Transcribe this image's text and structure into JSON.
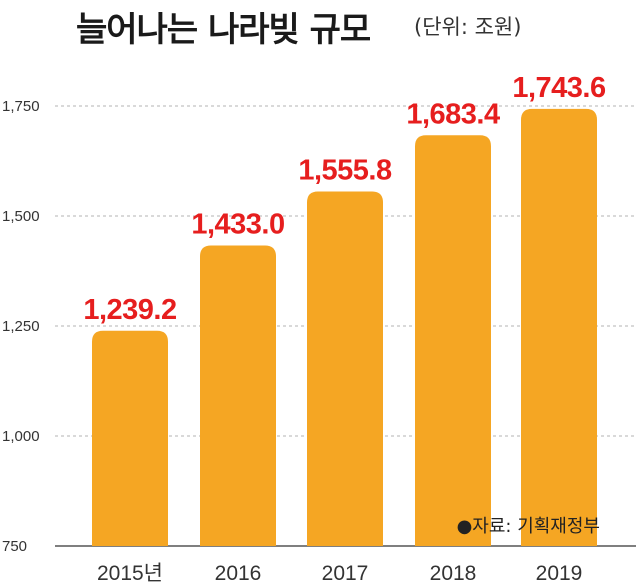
{
  "title": "늘어나는 나라빚 규모",
  "unit": "(단위: 조원)",
  "source": "●자료: 기획재정부",
  "colors": {
    "bar": "#f5a623",
    "label": "#e61e1e",
    "grid": "#b3b3b3",
    "axis": "#333333"
  },
  "chart_data": {
    "type": "bar",
    "categories": [
      "2015년",
      "2016",
      "2017",
      "2018",
      "2019"
    ],
    "values": [
      1239.2,
      1433.0,
      1555.8,
      1683.4,
      1743.6
    ],
    "value_labels": [
      "1,239.2",
      "1,433.0",
      "1,555.8",
      "1,683.4",
      "1,743.6"
    ],
    "yticks": [
      750,
      1000,
      1250,
      1500,
      1750
    ],
    "ytick_labels": [
      "750",
      "1,000",
      "1,250",
      "1,500",
      "1,750"
    ],
    "ylim": [
      750,
      1750
    ],
    "grid": true,
    "title": "늘어나는 나라빚 규모",
    "xlabel": "",
    "ylabel": ""
  }
}
